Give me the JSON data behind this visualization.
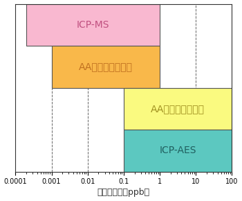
{
  "xlabel": "検出下限値（ppb）",
  "bars": [
    {
      "label": "ICP-MS",
      "xmin": 0.0002,
      "xmax": 1.0,
      "ymin": 3,
      "ymax": 4,
      "color": "#F9B8D0"
    },
    {
      "label": "AA（電気加熱法）",
      "xmin": 0.001,
      "xmax": 1.0,
      "ymin": 2,
      "ymax": 3,
      "color": "#F9B84A"
    },
    {
      "label": "AA（フレーム法）",
      "xmin": 0.1,
      "xmax": 100,
      "ymin": 1,
      "ymax": 2,
      "color": "#FAFA80"
    },
    {
      "label": "ICP-AES",
      "xmin": 0.1,
      "xmax": 100,
      "ymin": 0,
      "ymax": 1,
      "color": "#5CC8C0"
    }
  ],
  "xticks": [
    0.0001,
    0.001,
    0.01,
    0.1,
    1,
    10,
    100
  ],
  "xtick_labels": [
    "0.0001",
    "0.001",
    "0.01",
    "0.1",
    "1",
    "10",
    "100"
  ],
  "dashed_lines": [
    0.001,
    0.01,
    1,
    10
  ],
  "text_fontsize": 10,
  "xlabel_fontsize": 9,
  "tick_fontsize": 7,
  "edge_color": "#555555",
  "background_color": "#ffffff",
  "text_color_dark": "#C05080",
  "text_color_orange": "#C07020",
  "text_color_yellow": "#A09020",
  "text_color_teal": "#206060"
}
